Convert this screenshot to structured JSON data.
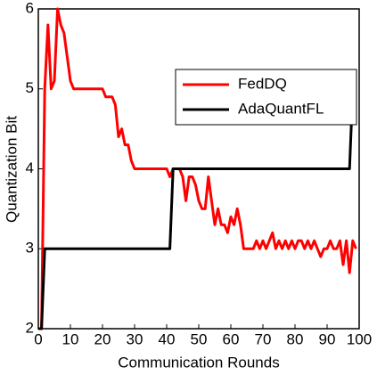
{
  "chart_data": {
    "type": "line",
    "xlabel": "Communication Rounds",
    "ylabel": "Quantization Bit",
    "xlim": [
      0,
      100
    ],
    "ylim": [
      2,
      6
    ],
    "xticks": [
      0,
      10,
      20,
      30,
      40,
      50,
      60,
      70,
      80,
      90,
      100
    ],
    "yticks": [
      2,
      3,
      4,
      5,
      6
    ],
    "legend": "upper right",
    "series": [
      {
        "name": "FedDQ",
        "color": "#ff0000",
        "x": [
          0,
          1,
          2,
          3,
          4,
          5,
          6,
          7,
          8,
          9,
          10,
          11,
          12,
          13,
          14,
          15,
          16,
          17,
          18,
          19,
          20,
          21,
          22,
          23,
          24,
          25,
          26,
          27,
          28,
          29,
          30,
          31,
          32,
          33,
          34,
          35,
          36,
          37,
          38,
          39,
          40,
          41,
          42,
          43,
          44,
          45,
          46,
          47,
          48,
          49,
          50,
          51,
          52,
          53,
          54,
          55,
          56,
          57,
          58,
          59,
          60,
          61,
          62,
          63,
          64,
          65,
          66,
          67,
          68,
          69,
          70,
          71,
          72,
          73,
          74,
          75,
          76,
          77,
          78,
          79,
          80,
          81,
          82,
          83,
          84,
          85,
          86,
          87,
          88,
          89,
          90,
          91,
          92,
          93,
          94,
          95,
          96,
          97,
          98,
          99
        ],
        "values": [
          2,
          2,
          5,
          5.8,
          5,
          5.1,
          6,
          5.8,
          5.7,
          5.4,
          5.1,
          5,
          5,
          5,
          5,
          5,
          5,
          5,
          5,
          5,
          5,
          4.9,
          4.9,
          4.9,
          4.8,
          4.4,
          4.5,
          4.3,
          4.3,
          4.1,
          4,
          4,
          4,
          4,
          4,
          4,
          4,
          4,
          4,
          4,
          4,
          3.9,
          4,
          4,
          4,
          3.9,
          3.6,
          3.9,
          3.9,
          3.8,
          3.6,
          3.5,
          3.5,
          3.9,
          3.6,
          3.3,
          3.5,
          3.3,
          3.3,
          3.2,
          3.4,
          3.3,
          3.5,
          3.3,
          3,
          3,
          3,
          3,
          3.1,
          3,
          3.1,
          3,
          3.1,
          3.2,
          3,
          3.1,
          3,
          3.1,
          3,
          3.1,
          3,
          3.1,
          3.1,
          3,
          3.1,
          3,
          3.1,
          3,
          2.9,
          3,
          3,
          3.1,
          3,
          3,
          3.1,
          2.8,
          3.1,
          2.7,
          3.1,
          3
        ]
      },
      {
        "name": "AdaQuantFL",
        "color": "#000000",
        "x": [
          0,
          1,
          2,
          41,
          42,
          97,
          98,
          99
        ],
        "values": [
          2,
          2,
          3,
          3,
          4,
          4,
          5,
          5
        ]
      }
    ]
  }
}
